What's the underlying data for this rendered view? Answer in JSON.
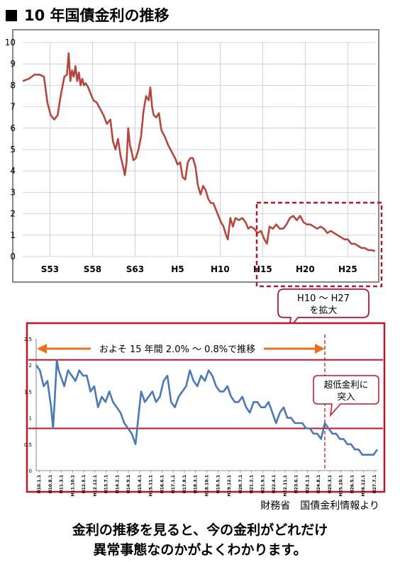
{
  "title": "10 年国債金利の推移",
  "callout_zoom": "H10 ～ H27\nを拡大",
  "credit": "財務省　国債金利情報より",
  "caption": [
    "金利の推移を見ると、今の金利がどれだけ",
    "異常事態なのかがよくわかります。"
  ],
  "colors": {
    "top_line": "#b5473f",
    "bottom_line": "#4a78b8",
    "frame": "#c0152a",
    "arrow": "#e8711d",
    "gray_frame": "#888888"
  },
  "chart_data": [
    {
      "type": "line",
      "title": "10 年国債金利の推移",
      "xlabel": "",
      "ylabel": "",
      "ylim": [
        0,
        10
      ],
      "y_ticks": [
        "0",
        "1",
        "2",
        "3",
        "4",
        "5",
        "6",
        "7",
        "8",
        "9",
        "10"
      ],
      "x_tick_labels": [
        {
          "label": "S53",
          "year": 1978
        },
        {
          "label": "S58",
          "year": 1983
        },
        {
          "label": "S63",
          "year": 1988
        },
        {
          "label": "H5",
          "year": 1993
        },
        {
          "label": "H10",
          "year": 1998
        },
        {
          "label": "H15",
          "year": 2003
        },
        {
          "label": "H20",
          "year": 2008
        },
        {
          "label": "H25",
          "year": 2013
        }
      ],
      "x_range": [
        1974.8,
        2016.3
      ],
      "grid": true,
      "series": [
        {
          "x": [
            1974.8,
            1975.5,
            1976.2,
            1976.8,
            1977.3,
            1977.7,
            1978.1,
            1978.5,
            1978.9,
            1979.3,
            1979.7,
            1980.0,
            1980.2,
            1980.4,
            1980.6,
            1980.8,
            1981.0,
            1981.2,
            1981.4,
            1981.6,
            1981.8,
            1982.0,
            1982.2,
            1982.5,
            1982.8,
            1983.1,
            1983.5,
            1983.9,
            1984.3,
            1984.7,
            1985.1,
            1985.4,
            1985.7,
            1986.0,
            1986.3,
            1986.6,
            1986.8,
            1987.0,
            1987.2,
            1987.4,
            1987.6,
            1987.8,
            1988.1,
            1988.4,
            1988.7,
            1989.0,
            1989.3,
            1989.6,
            1989.8,
            1990.0,
            1990.2,
            1990.5,
            1990.8,
            1991.1,
            1991.5,
            1991.9,
            1992.3,
            1992.7,
            1993.0,
            1993.3,
            1993.6,
            1993.9,
            1994.2,
            1994.5,
            1994.8,
            1995.1,
            1995.4,
            1995.7,
            1996.0,
            1996.3,
            1996.6,
            1996.9,
            1997.2,
            1997.5,
            1997.8,
            1998.1,
            1998.4,
            1998.7,
            1998.9,
            1999.2,
            1999.5,
            1999.8,
            2000.2,
            2000.6,
            2001.0,
            2001.3,
            2001.6,
            2002.0,
            2002.4,
            2002.8,
            2003.2,
            2003.5,
            2003.8,
            2004.2,
            2004.6,
            2005.0,
            2005.4,
            2005.8,
            2006.2,
            2006.6,
            2007.0,
            2007.4,
            2007.8,
            2008.2,
            2008.6,
            2009.0,
            2009.4,
            2009.8,
            2010.2,
            2010.6,
            2011.0,
            2011.4,
            2011.8,
            2012.2,
            2012.6,
            2013.0,
            2013.4,
            2013.8,
            2014.2,
            2014.6,
            2015.0,
            2015.4,
            2015.8,
            2016.2
          ],
          "y": [
            8.2,
            8.3,
            8.5,
            8.5,
            8.4,
            7.2,
            6.6,
            6.4,
            6.6,
            7.6,
            8.4,
            8.5,
            9.5,
            8.2,
            8.7,
            8.4,
            8.9,
            8.2,
            8.6,
            8.0,
            8.3,
            8.0,
            8.1,
            7.9,
            7.6,
            7.3,
            7.2,
            6.9,
            6.6,
            6.2,
            6.4,
            5.4,
            5.0,
            5.5,
            4.7,
            4.2,
            3.8,
            4.4,
            6.0,
            5.2,
            4.9,
            4.5,
            4.6,
            5.0,
            5.6,
            6.8,
            7.5,
            7.3,
            7.9,
            7.0,
            6.6,
            6.5,
            6.7,
            5.9,
            5.6,
            5.2,
            4.9,
            4.6,
            4.3,
            4.4,
            3.7,
            3.6,
            4.4,
            4.6,
            4.6,
            4.2,
            3.3,
            2.9,
            3.3,
            3.1,
            2.7,
            2.5,
            2.5,
            2.2,
            1.9,
            1.6,
            1.4,
            1.0,
            0.8,
            1.8,
            1.4,
            1.8,
            1.7,
            1.8,
            1.6,
            1.3,
            1.4,
            1.3,
            1.1,
            1.2,
            0.8,
            0.6,
            1.4,
            1.3,
            1.5,
            1.3,
            1.3,
            1.5,
            1.8,
            1.9,
            1.7,
            1.9,
            1.6,
            1.5,
            1.5,
            1.4,
            1.3,
            1.4,
            1.3,
            1.1,
            1.2,
            1.1,
            1.0,
            0.9,
            0.8,
            0.8,
            0.6,
            0.6,
            0.5,
            0.4,
            0.4,
            0.3,
            0.3,
            0.25
          ]
        }
      ],
      "annotations": [
        "H10 ～ H27\nを拡大"
      ]
    },
    {
      "type": "line",
      "title": "",
      "ylim": [
        0,
        2.5
      ],
      "y_ticks": [
        "0",
        "0.5",
        "1",
        "1.5",
        "2",
        "2.5"
      ],
      "x_range": [
        1998.0,
        2016.2
      ],
      "x_tick_labels": [
        "H10.1.1",
        "H10.8.1",
        "H11.3.1",
        "H11.10.1",
        "H12.5.1",
        "H12.12.1",
        "H13.7.1",
        "H14.2.1",
        "H14.9.1",
        "H15.4.1",
        "H15.11.1",
        "H16.6.1",
        "H17.1.1",
        "H17.8.1",
        "H18.3.1",
        "H18.10.1",
        "H19.5.1",
        "H19.12.1",
        "H20.7.1",
        "H21.2.1",
        "H21.9.1",
        "H22.4.1",
        "H22.11.1",
        "H23.6.1",
        "H24.1.1",
        "H24.8.1",
        "H25.3.1",
        "H25.10.1",
        "H26.5.1",
        "H26.12.1",
        "H27.7.1"
      ],
      "reference_lines": [
        2.1,
        0.8
      ],
      "annotations": [
        "およそ 15 年間 2.0% ～ 0.8%で推移",
        "超低金利に\n突入"
      ],
      "series": [
        {
          "x": [
            1998.0,
            1998.2,
            1998.4,
            1998.6,
            1998.8,
            1998.9,
            1999.0,
            1999.1,
            1999.2,
            1999.3,
            1999.5,
            1999.7,
            1999.9,
            2000.1,
            2000.3,
            2000.5,
            2000.7,
            2000.9,
            2001.1,
            2001.3,
            2001.5,
            2001.7,
            2001.9,
            2002.1,
            2002.3,
            2002.5,
            2002.7,
            2002.9,
            2003.1,
            2003.3,
            2003.45,
            2003.6,
            2003.8,
            2004.0,
            2004.2,
            2004.4,
            2004.6,
            2004.8,
            2005.0,
            2005.2,
            2005.4,
            2005.6,
            2005.8,
            2006.0,
            2006.2,
            2006.4,
            2006.6,
            2006.8,
            2007.0,
            2007.2,
            2007.4,
            2007.6,
            2007.8,
            2008.0,
            2008.2,
            2008.4,
            2008.6,
            2008.8,
            2009.0,
            2009.2,
            2009.4,
            2009.6,
            2009.8,
            2010.0,
            2010.2,
            2010.4,
            2010.6,
            2010.8,
            2011.0,
            2011.2,
            2011.4,
            2011.6,
            2011.8,
            2012.0,
            2012.2,
            2012.4,
            2012.6,
            2012.8,
            2013.0,
            2013.2,
            2013.4,
            2013.6,
            2013.8,
            2014.0,
            2014.2,
            2014.4,
            2014.6,
            2014.8,
            2015.0,
            2015.2,
            2015.4,
            2015.6,
            2015.8,
            2016.0,
            2016.2
          ],
          "y": [
            2.0,
            1.9,
            1.6,
            1.7,
            1.2,
            0.8,
            1.4,
            2.1,
            1.9,
            1.8,
            1.6,
            1.9,
            1.8,
            1.7,
            1.9,
            1.8,
            1.8,
            1.5,
            1.6,
            1.2,
            1.4,
            1.3,
            1.5,
            1.3,
            1.2,
            1.1,
            0.9,
            0.8,
            0.7,
            0.5,
            1.0,
            1.5,
            1.3,
            1.4,
            1.5,
            1.3,
            1.4,
            1.7,
            1.8,
            1.3,
            1.2,
            1.4,
            1.5,
            1.6,
            1.9,
            1.7,
            1.6,
            1.8,
            1.7,
            1.9,
            1.8,
            1.6,
            1.5,
            1.5,
            1.6,
            1.4,
            1.3,
            1.3,
            1.4,
            1.2,
            1.1,
            1.3,
            1.3,
            1.2,
            1.2,
            1.3,
            1.1,
            0.9,
            1.1,
            1.2,
            1.0,
            1.0,
            0.9,
            0.9,
            0.9,
            0.8,
            0.8,
            0.7,
            0.7,
            0.6,
            0.9,
            0.8,
            0.7,
            0.7,
            0.6,
            0.6,
            0.5,
            0.5,
            0.4,
            0.4,
            0.3,
            0.3,
            0.3,
            0.3,
            0.4
          ]
        }
      ]
    }
  ]
}
